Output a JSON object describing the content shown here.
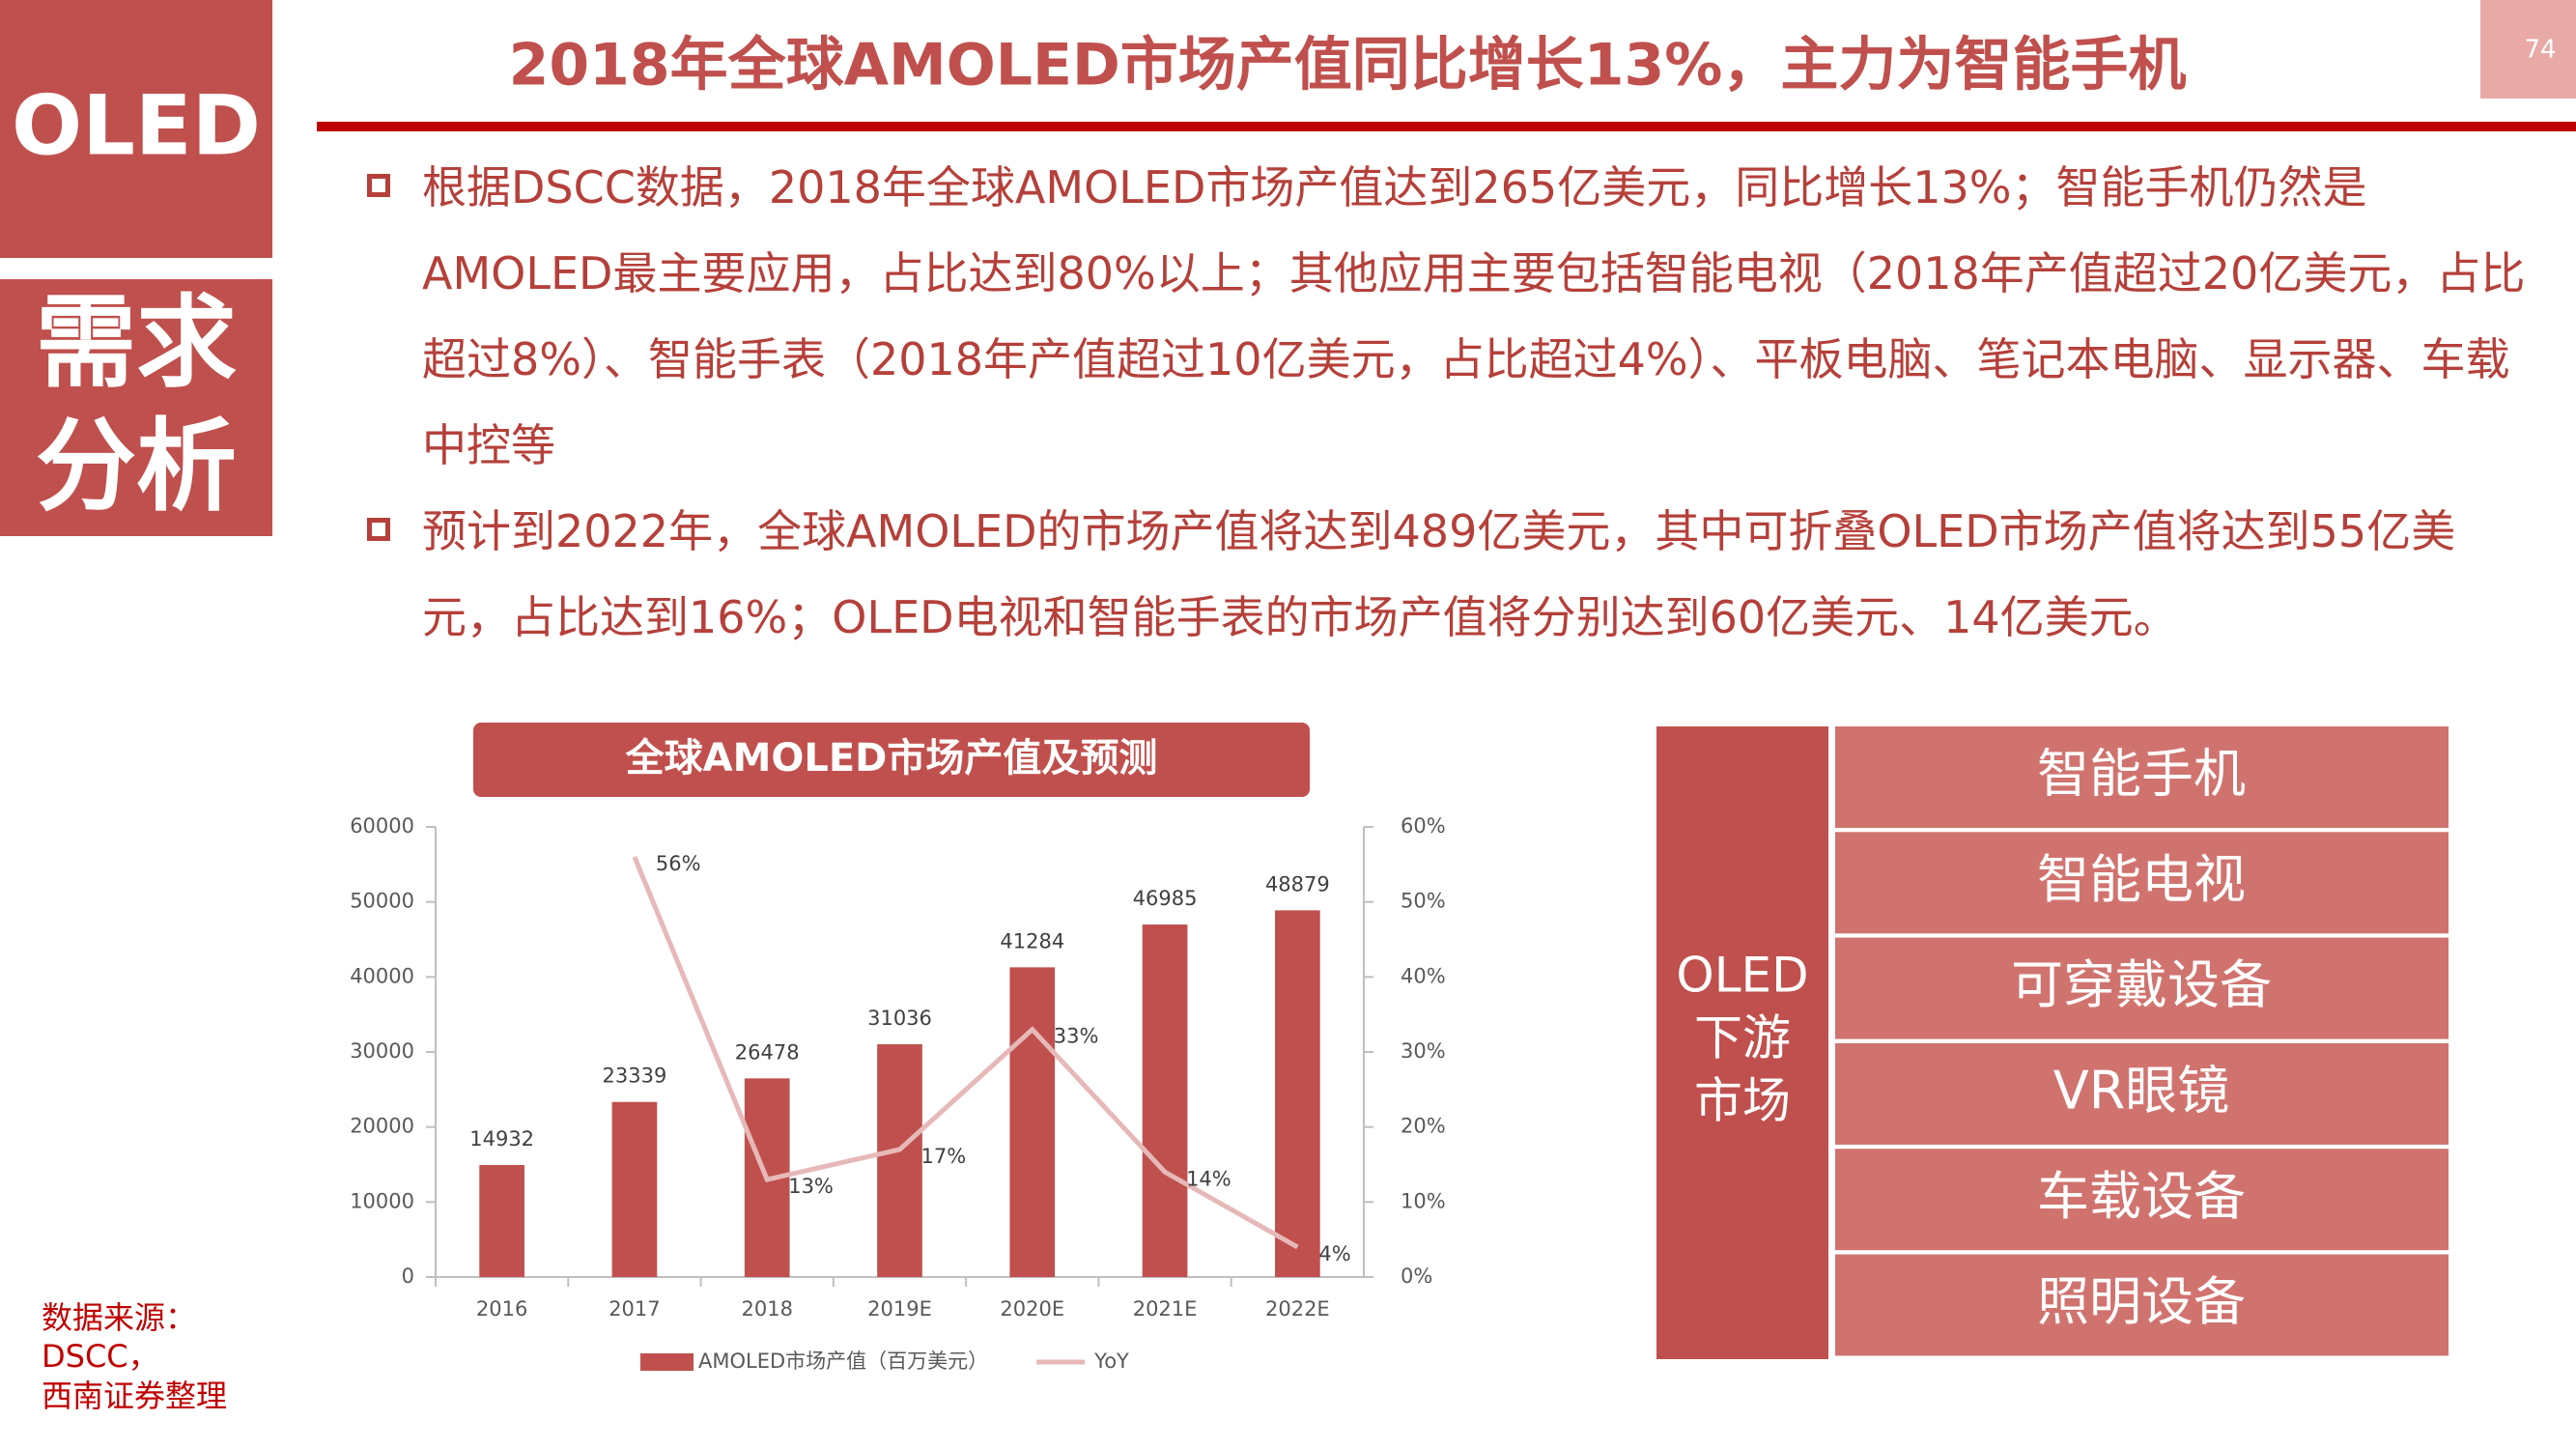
{
  "sidebar": {
    "tag": "OLED",
    "section": [
      "需求",
      "分析"
    ]
  },
  "page_number": "74",
  "title": "2018年全球AMOLED市场产值同比增长13%，主力为智能手机",
  "bullets": [
    "根据DSCC数据，2018年全球AMOLED市场产值达到265亿美元，同比增长13%；智能手机仍然是AMOLED最主要应用，占比达到80%以上；其他应用主要包括智能电视（2018年产值超过20亿美元，占比超过8%）、智能手表（2018年产值超过10亿美元，占比超过4%）、平板电脑、笔记本电脑、显示器、车载中控等",
    "预计到2022年，全球AMOLED的市场产值将达到489亿美元，其中可折叠OLED市场产值将达到55亿美元，占比达到16%；OLED电视和智能手表的市场产值将分别达到60亿美元、14亿美元。"
  ],
  "chart_data": {
    "type": "bar",
    "title": "全球AMOLED市场产值及预测",
    "categories": [
      "2016",
      "2017",
      "2018",
      "2019E",
      "2020E",
      "2021E",
      "2022E"
    ],
    "series": [
      {
        "name": "AMOLED市场产值（百万美元）",
        "type": "bar",
        "color": "#c0504d",
        "values": [
          14932,
          23339,
          26478,
          31036,
          41284,
          46985,
          48879
        ]
      },
      {
        "name": "YoY",
        "type": "line",
        "axis": "y2",
        "color": "#e6b9b8",
        "values": [
          null,
          56,
          13,
          17,
          33,
          14,
          4
        ],
        "value_labels": [
          null,
          "56%",
          "13%",
          "17%",
          "33%",
          "14%",
          "4%"
        ]
      }
    ],
    "ylim": [
      0,
      60000
    ],
    "yticks": [
      0,
      10000,
      20000,
      30000,
      40000,
      50000,
      60000
    ],
    "y2lim": [
      0,
      60
    ],
    "y2ticks": [
      {
        "value": 0,
        "label": "0%"
      },
      {
        "value": 10,
        "label": "10%"
      },
      {
        "value": 20,
        "label": "20%"
      },
      {
        "value": 30,
        "label": "30%"
      },
      {
        "value": 40,
        "label": "40%"
      },
      {
        "value": 50,
        "label": "50%"
      },
      {
        "value": 60,
        "label": "60%"
      }
    ],
    "legend": "bottom"
  },
  "market": {
    "label": [
      "OLED",
      "下游",
      "市场"
    ],
    "items": [
      "智能手机",
      "智能电视",
      "可穿戴设备",
      "VR眼镜",
      "车载设备",
      "照明设备"
    ]
  },
  "source": [
    "数据来源：",
    "DSCC，",
    "西南证券整理"
  ]
}
